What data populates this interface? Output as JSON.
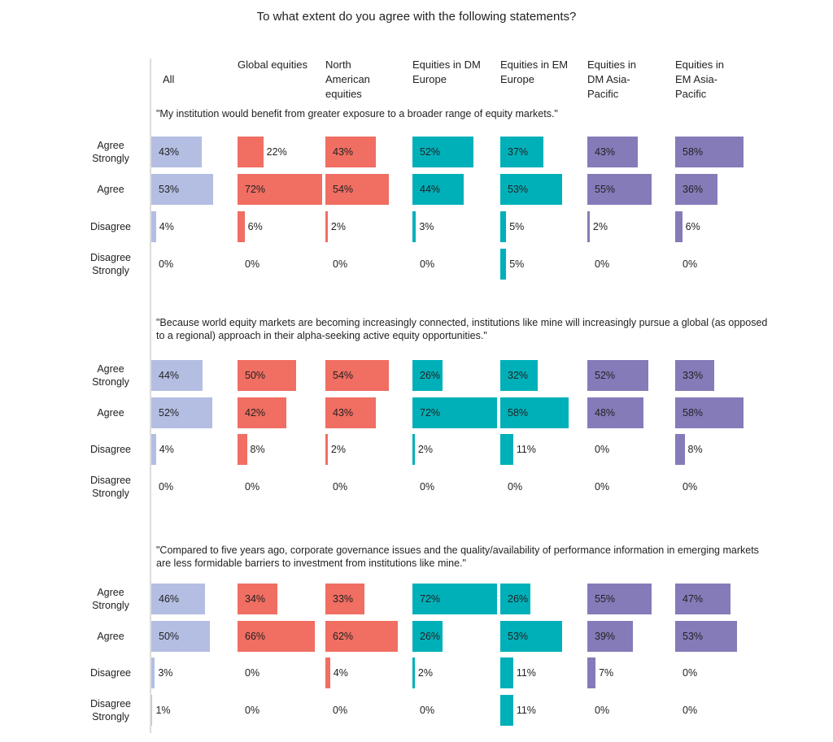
{
  "chart_data": {
    "type": "bar",
    "title": "To what extent do you agree with the following statements?",
    "columns": [
      "All",
      "Global equities",
      "North American equities",
      "Equities in DM Europe",
      "Equities in EM Europe",
      "Equities in DM Asia-Pacific",
      "Equities in EM Asia-Pacific"
    ],
    "categories": [
      "Agree Strongly",
      "Agree",
      "Disagree",
      "Disagree Strongly"
    ],
    "colors": [
      "#b4bee3",
      "#f06e62",
      "#f06e62",
      "#00b0b9",
      "#00b0b9",
      "#857bb9",
      "#857bb9"
    ],
    "panels": [
      {
        "statement": "\"My institution would benefit from greater exposure to a broader range of equity markets.\"",
        "values": [
          [
            43,
            53,
            4,
            0
          ],
          [
            22,
            72,
            6,
            0
          ],
          [
            43,
            54,
            2,
            0
          ],
          [
            52,
            44,
            3,
            0
          ],
          [
            37,
            53,
            5,
            5
          ],
          [
            43,
            55,
            2,
            0
          ],
          [
            58,
            36,
            6,
            0
          ]
        ]
      },
      {
        "statement": "\"Because world equity markets are becoming increasingly connected, institutions like mine will increasingly pursue a global (as opposed to a regional) approach in their alpha-seeking active equity opportunities.\"",
        "values": [
          [
            44,
            52,
            4,
            0
          ],
          [
            50,
            42,
            8,
            0
          ],
          [
            54,
            43,
            2,
            0
          ],
          [
            26,
            72,
            2,
            0
          ],
          [
            32,
            58,
            11,
            0
          ],
          [
            52,
            48,
            0,
            0
          ],
          [
            33,
            58,
            8,
            0
          ]
        ]
      },
      {
        "statement": "\"Compared to five years ago, corporate governance issues and the quality/availability of performance information in emerging markets are less formidable barriers to investment from institutions like mine.\"",
        "values": [
          [
            46,
            50,
            3,
            1
          ],
          [
            34,
            66,
            0,
            0
          ],
          [
            33,
            62,
            4,
            0
          ],
          [
            72,
            26,
            2,
            0
          ],
          [
            26,
            53,
            11,
            11
          ],
          [
            55,
            39,
            7,
            0
          ],
          [
            47,
            53,
            0,
            0
          ]
        ]
      }
    ]
  }
}
